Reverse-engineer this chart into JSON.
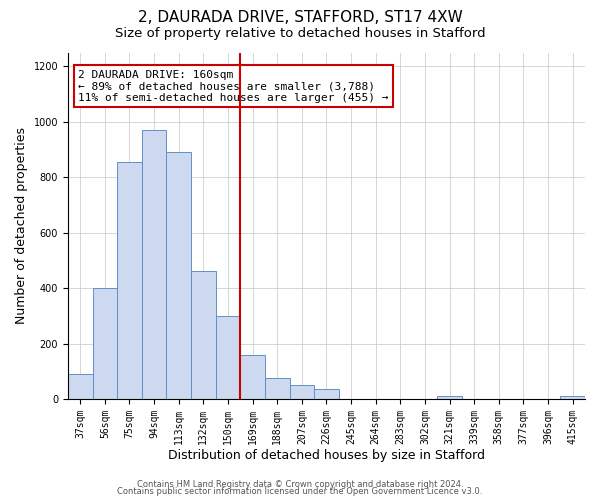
{
  "title": "2, DAURADA DRIVE, STAFFORD, ST17 4XW",
  "subtitle": "Size of property relative to detached houses in Stafford",
  "xlabel": "Distribution of detached houses by size in Stafford",
  "ylabel": "Number of detached properties",
  "bar_labels": [
    "37sqm",
    "56sqm",
    "75sqm",
    "94sqm",
    "113sqm",
    "132sqm",
    "150sqm",
    "169sqm",
    "188sqm",
    "207sqm",
    "226sqm",
    "245sqm",
    "264sqm",
    "283sqm",
    "302sqm",
    "321sqm",
    "339sqm",
    "358sqm",
    "377sqm",
    "396sqm",
    "415sqm"
  ],
  "bar_values": [
    90,
    400,
    855,
    970,
    890,
    460,
    300,
    160,
    75,
    52,
    35,
    0,
    0,
    0,
    0,
    12,
    0,
    0,
    0,
    0,
    12
  ],
  "bar_color": "#cdd9ee",
  "bar_edge_color": "#6090c8",
  "vline_color": "#cc0000",
  "annotation_box_text": "2 DAURADA DRIVE: 160sqm\n← 89% of detached houses are smaller (3,788)\n11% of semi-detached houses are larger (455) →",
  "annotation_box_color": "#ffffff",
  "annotation_box_edge_color": "#cc0000",
  "ylim": [
    0,
    1250
  ],
  "yticks": [
    0,
    200,
    400,
    600,
    800,
    1000,
    1200
  ],
  "background_color": "#ffffff",
  "footer_line1": "Contains HM Land Registry data © Crown copyright and database right 2024.",
  "footer_line2": "Contains public sector information licensed under the Open Government Licence v3.0.",
  "title_fontsize": 11,
  "subtitle_fontsize": 9.5,
  "ylabel_fontsize": 9,
  "xlabel_fontsize": 9,
  "tick_fontsize": 7,
  "annot_fontsize": 8,
  "footer_fontsize": 6,
  "grid_color": "#d0d0d0"
}
